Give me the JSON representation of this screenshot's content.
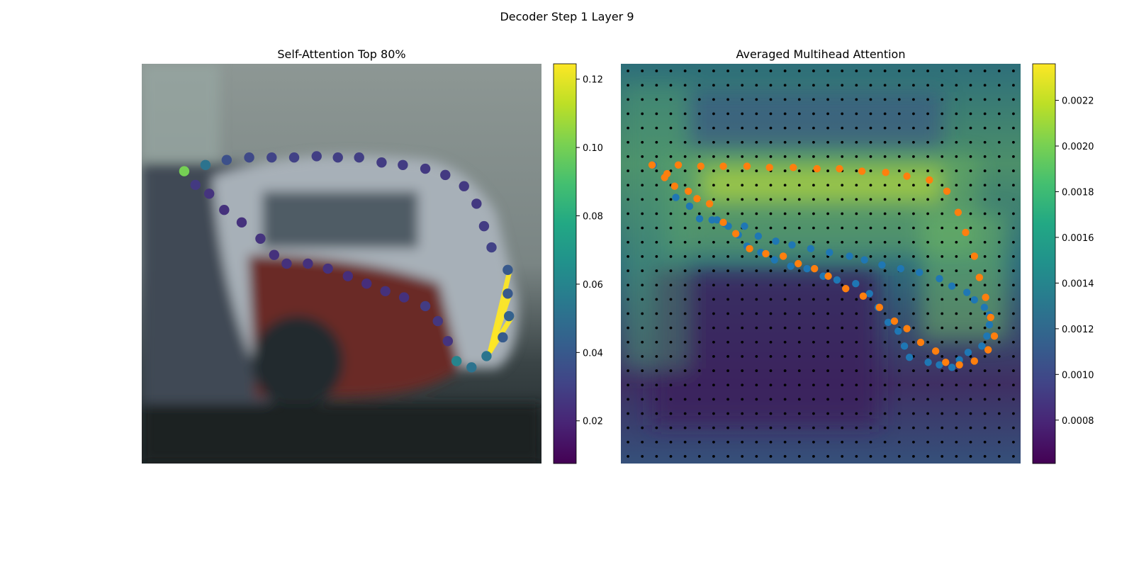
{
  "figure": {
    "suptitle": "Decoder Step 1 Layer 9"
  },
  "chart_data": [
    {
      "type": "scatter",
      "title": "Self-Attention Top 80%",
      "image_extent": {
        "xlim": [
          0,
          32
        ],
        "ylim": [
          32,
          0
        ]
      },
      "colormap": "viridis",
      "colorbar": {
        "range": [
          0.0075,
          0.1245
        ],
        "ticks": [
          "0.02",
          "0.04",
          "0.06",
          "0.08",
          "0.10",
          "0.12"
        ],
        "tick_values": [
          0.02,
          0.04,
          0.06,
          0.08,
          0.1,
          0.12
        ]
      },
      "points": [
        {
          "x": 3.4,
          "y": 8.6,
          "v": 0.1
        },
        {
          "x": 5.1,
          "y": 8.1,
          "v": 0.052
        },
        {
          "x": 6.8,
          "y": 7.7,
          "v": 0.036
        },
        {
          "x": 8.6,
          "y": 7.5,
          "v": 0.033
        },
        {
          "x": 10.4,
          "y": 7.5,
          "v": 0.031
        },
        {
          "x": 12.2,
          "y": 7.5,
          "v": 0.03
        },
        {
          "x": 14.0,
          "y": 7.4,
          "v": 0.029
        },
        {
          "x": 15.7,
          "y": 7.5,
          "v": 0.029
        },
        {
          "x": 17.4,
          "y": 7.5,
          "v": 0.029
        },
        {
          "x": 19.2,
          "y": 7.9,
          "v": 0.028
        },
        {
          "x": 20.9,
          "y": 8.1,
          "v": 0.028
        },
        {
          "x": 22.7,
          "y": 8.4,
          "v": 0.027
        },
        {
          "x": 24.3,
          "y": 8.9,
          "v": 0.027
        },
        {
          "x": 25.8,
          "y": 9.8,
          "v": 0.027
        },
        {
          "x": 26.8,
          "y": 11.2,
          "v": 0.027
        },
        {
          "x": 27.4,
          "y": 13.0,
          "v": 0.028
        },
        {
          "x": 28.0,
          "y": 14.7,
          "v": 0.03
        },
        {
          "x": 29.3,
          "y": 16.5,
          "v": 0.04
        },
        {
          "x": 29.3,
          "y": 18.4,
          "v": 0.04
        },
        {
          "x": 29.4,
          "y": 20.2,
          "v": 0.044
        },
        {
          "x": 28.9,
          "y": 21.9,
          "v": 0.041
        },
        {
          "x": 27.6,
          "y": 23.4,
          "v": 0.053
        },
        {
          "x": 26.4,
          "y": 24.3,
          "v": 0.052
        },
        {
          "x": 25.2,
          "y": 23.8,
          "v": 0.06
        },
        {
          "x": 24.5,
          "y": 22.2,
          "v": 0.025
        },
        {
          "x": 23.7,
          "y": 20.6,
          "v": 0.026
        },
        {
          "x": 22.7,
          "y": 19.4,
          "v": 0.028
        },
        {
          "x": 21.0,
          "y": 18.7,
          "v": 0.024
        },
        {
          "x": 19.5,
          "y": 18.2,
          "v": 0.024
        },
        {
          "x": 18.0,
          "y": 17.6,
          "v": 0.023
        },
        {
          "x": 16.5,
          "y": 17.0,
          "v": 0.023
        },
        {
          "x": 14.9,
          "y": 16.4,
          "v": 0.024
        },
        {
          "x": 13.3,
          "y": 16.0,
          "v": 0.024
        },
        {
          "x": 11.6,
          "y": 16.0,
          "v": 0.024
        },
        {
          "x": 10.6,
          "y": 15.3,
          "v": 0.024
        },
        {
          "x": 9.5,
          "y": 14.0,
          "v": 0.025
        },
        {
          "x": 8.0,
          "y": 12.7,
          "v": 0.024
        },
        {
          "x": 6.6,
          "y": 11.7,
          "v": 0.024
        },
        {
          "x": 5.4,
          "y": 10.4,
          "v": 0.025
        },
        {
          "x": 4.3,
          "y": 9.7,
          "v": 0.027
        }
      ],
      "attention_lines": [
        {
          "from": [
            27.9,
            23.0
          ],
          "to": [
            29.4,
            16.8
          ]
        },
        {
          "from": [
            27.9,
            23.0
          ],
          "to": [
            29.4,
            18.6
          ]
        },
        {
          "from": [
            27.9,
            23.0
          ],
          "to": [
            29.6,
            20.3
          ]
        }
      ]
    },
    {
      "type": "heatmap",
      "title": "Averaged Multihead Attention",
      "image_extent": {
        "xlim": [
          0,
          32
        ],
        "ylim": [
          32,
          0
        ]
      },
      "colormap": "viridis",
      "colorbar": {
        "range": [
          0.00061,
          0.00236
        ],
        "ticks": [
          "0.0008",
          "0.0010",
          "0.0012",
          "0.0014",
          "0.0016",
          "0.0018",
          "0.0020",
          "0.0022"
        ],
        "tick_values": [
          0.0008,
          0.001,
          0.0012,
          0.0014,
          0.0016,
          0.0018,
          0.002,
          0.0022
        ]
      },
      "grid_points": 28,
      "series": [
        {
          "color": "#1f77b4",
          "points": [
            [
              2.6,
              8.1
            ],
            [
              3.5,
              9.1
            ],
            [
              4.4,
              10.7
            ],
            [
              5.5,
              11.4
            ],
            [
              6.3,
              12.4
            ],
            [
              7.3,
              12.5
            ],
            [
              8.3,
              12.8
            ],
            [
              9.9,
              13.0
            ],
            [
              11.0,
              13.8
            ],
            [
              12.4,
              14.2
            ],
            [
              13.7,
              14.5
            ],
            [
              15.2,
              14.8
            ],
            [
              16.7,
              15.1
            ],
            [
              18.3,
              15.4
            ],
            [
              19.5,
              15.7
            ],
            [
              20.9,
              16.1
            ],
            [
              22.4,
              16.4
            ],
            [
              23.9,
              16.7
            ],
            [
              25.5,
              17.2
            ],
            [
              26.5,
              17.8
            ],
            [
              27.7,
              18.3
            ],
            [
              28.3,
              18.9
            ],
            [
              29.1,
              19.5
            ],
            [
              29.5,
              20.1
            ],
            [
              29.5,
              20.9
            ],
            [
              29.3,
              21.8
            ],
            [
              28.9,
              22.6
            ],
            [
              27.8,
              23.1
            ],
            [
              27.1,
              23.7
            ],
            [
              26.5,
              24.3
            ],
            [
              25.5,
              24.1
            ],
            [
              24.6,
              23.9
            ],
            [
              23.1,
              23.5
            ],
            [
              22.7,
              22.6
            ],
            [
              22.2,
              21.4
            ],
            [
              21.4,
              20.7
            ],
            [
              20.6,
              19.5
            ],
            [
              19.9,
              18.4
            ],
            [
              18.8,
              17.6
            ],
            [
              17.3,
              17.3
            ],
            [
              16.2,
              17.0
            ],
            [
              14.9,
              16.4
            ],
            [
              13.6,
              16.2
            ],
            [
              12.3,
              15.7
            ],
            [
              11.2,
              15.1
            ],
            [
              10.1,
              14.6
            ],
            [
              9.4,
              13.7
            ],
            [
              8.6,
              13.0
            ],
            [
              7.7,
              12.5
            ]
          ]
        },
        {
          "color": "#ff7f0e",
          "points": [
            [
              2.5,
              8.1
            ],
            [
              3.7,
              8.8
            ],
            [
              4.6,
              8.1
            ],
            [
              6.4,
              8.2
            ],
            [
              8.2,
              8.2
            ],
            [
              10.1,
              8.2
            ],
            [
              11.9,
              8.3
            ],
            [
              13.8,
              8.3
            ],
            [
              15.7,
              8.4
            ],
            [
              17.5,
              8.4
            ],
            [
              19.3,
              8.6
            ],
            [
              21.2,
              8.7
            ],
            [
              22.9,
              9.0
            ],
            [
              24.7,
              9.3
            ],
            [
              26.1,
              10.2
            ],
            [
              27.0,
              11.9
            ],
            [
              27.6,
              13.5
            ],
            [
              28.3,
              15.4
            ],
            [
              28.7,
              17.1
            ],
            [
              29.2,
              18.7
            ],
            [
              29.6,
              20.3
            ],
            [
              29.9,
              21.8
            ],
            [
              29.4,
              22.9
            ],
            [
              28.3,
              23.8
            ],
            [
              27.1,
              24.1
            ],
            [
              26.0,
              23.9
            ],
            [
              25.2,
              23.0
            ],
            [
              24.0,
              22.3
            ],
            [
              22.9,
              21.2
            ],
            [
              21.9,
              20.6
            ],
            [
              20.7,
              19.5
            ],
            [
              19.4,
              18.6
            ],
            [
              18.0,
              18.0
            ],
            [
              16.6,
              17.0
            ],
            [
              15.5,
              16.4
            ],
            [
              14.2,
              16.0
            ],
            [
              13.0,
              15.4
            ],
            [
              11.6,
              15.2
            ],
            [
              10.3,
              14.8
            ],
            [
              9.2,
              13.6
            ],
            [
              8.2,
              12.7
            ],
            [
              7.1,
              11.2
            ],
            [
              6.1,
              10.8
            ],
            [
              5.4,
              10.2
            ],
            [
              4.3,
              9.8
            ],
            [
              3.5,
              9.1
            ]
          ]
        }
      ]
    }
  ]
}
